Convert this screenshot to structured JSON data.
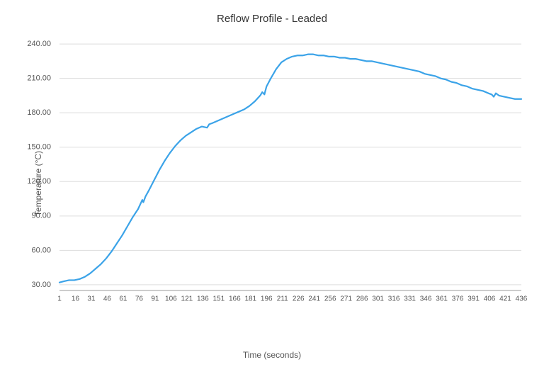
{
  "chart": {
    "type": "line",
    "title": "Reflow Profile - Leaded",
    "title_fontsize": 15,
    "xlabel": "Time (seconds)",
    "ylabel": "Temperature (°C)",
    "label_fontsize": 12,
    "tick_fontsize": 11,
    "background_color": "#ffffff",
    "grid_color": "#dddddd",
    "axis_color": "#999999",
    "text_color": "#555555",
    "line_color": "#3ba3e8",
    "line_width": 2.2,
    "xlim": [
      1,
      436
    ],
    "ylim": [
      25,
      245
    ],
    "xticks": [
      1,
      16,
      31,
      46,
      61,
      76,
      91,
      106,
      121,
      136,
      151,
      166,
      181,
      196,
      211,
      226,
      241,
      256,
      271,
      286,
      301,
      316,
      331,
      346,
      361,
      376,
      391,
      406,
      421,
      436
    ],
    "yticks": [
      30,
      60,
      90,
      120,
      150,
      180,
      210,
      240
    ],
    "ytick_format": "fixed2",
    "series": [
      {
        "x": 1,
        "y": 32
      },
      {
        "x": 5,
        "y": 33
      },
      {
        "x": 10,
        "y": 34
      },
      {
        "x": 15,
        "y": 34
      },
      {
        "x": 20,
        "y": 35
      },
      {
        "x": 25,
        "y": 37
      },
      {
        "x": 30,
        "y": 40
      },
      {
        "x": 35,
        "y": 44
      },
      {
        "x": 40,
        "y": 48
      },
      {
        "x": 45,
        "y": 53
      },
      {
        "x": 50,
        "y": 59
      },
      {
        "x": 55,
        "y": 66
      },
      {
        "x": 60,
        "y": 73
      },
      {
        "x": 65,
        "y": 81
      },
      {
        "x": 70,
        "y": 89
      },
      {
        "x": 75,
        "y": 96
      },
      {
        "x": 77,
        "y": 100
      },
      {
        "x": 79,
        "y": 104
      },
      {
        "x": 80,
        "y": 102
      },
      {
        "x": 82,
        "y": 107
      },
      {
        "x": 85,
        "y": 112
      },
      {
        "x": 90,
        "y": 121
      },
      {
        "x": 95,
        "y": 130
      },
      {
        "x": 100,
        "y": 138
      },
      {
        "x": 105,
        "y": 145
      },
      {
        "x": 110,
        "y": 151
      },
      {
        "x": 115,
        "y": 156
      },
      {
        "x": 120,
        "y": 160
      },
      {
        "x": 125,
        "y": 163
      },
      {
        "x": 130,
        "y": 166
      },
      {
        "x": 135,
        "y": 168
      },
      {
        "x": 140,
        "y": 167
      },
      {
        "x": 142,
        "y": 170
      },
      {
        "x": 145,
        "y": 171
      },
      {
        "x": 150,
        "y": 173
      },
      {
        "x": 155,
        "y": 175
      },
      {
        "x": 160,
        "y": 177
      },
      {
        "x": 165,
        "y": 179
      },
      {
        "x": 170,
        "y": 181
      },
      {
        "x": 175,
        "y": 183
      },
      {
        "x": 180,
        "y": 186
      },
      {
        "x": 185,
        "y": 190
      },
      {
        "x": 190,
        "y": 195
      },
      {
        "x": 192,
        "y": 198
      },
      {
        "x": 194,
        "y": 196
      },
      {
        "x": 196,
        "y": 203
      },
      {
        "x": 200,
        "y": 210
      },
      {
        "x": 205,
        "y": 218
      },
      {
        "x": 210,
        "y": 224
      },
      {
        "x": 215,
        "y": 227
      },
      {
        "x": 220,
        "y": 229
      },
      {
        "x": 225,
        "y": 230
      },
      {
        "x": 230,
        "y": 230
      },
      {
        "x": 235,
        "y": 231
      },
      {
        "x": 240,
        "y": 231
      },
      {
        "x": 245,
        "y": 230
      },
      {
        "x": 250,
        "y": 230
      },
      {
        "x": 255,
        "y": 229
      },
      {
        "x": 260,
        "y": 229
      },
      {
        "x": 265,
        "y": 228
      },
      {
        "x": 270,
        "y": 228
      },
      {
        "x": 275,
        "y": 227
      },
      {
        "x": 280,
        "y": 227
      },
      {
        "x": 285,
        "y": 226
      },
      {
        "x": 290,
        "y": 225
      },
      {
        "x": 295,
        "y": 225
      },
      {
        "x": 300,
        "y": 224
      },
      {
        "x": 305,
        "y": 223
      },
      {
        "x": 310,
        "y": 222
      },
      {
        "x": 315,
        "y": 221
      },
      {
        "x": 320,
        "y": 220
      },
      {
        "x": 325,
        "y": 219
      },
      {
        "x": 330,
        "y": 218
      },
      {
        "x": 335,
        "y": 217
      },
      {
        "x": 340,
        "y": 216
      },
      {
        "x": 345,
        "y": 214
      },
      {
        "x": 350,
        "y": 213
      },
      {
        "x": 355,
        "y": 212
      },
      {
        "x": 360,
        "y": 210
      },
      {
        "x": 365,
        "y": 209
      },
      {
        "x": 370,
        "y": 207
      },
      {
        "x": 375,
        "y": 206
      },
      {
        "x": 380,
        "y": 204
      },
      {
        "x": 385,
        "y": 203
      },
      {
        "x": 390,
        "y": 201
      },
      {
        "x": 395,
        "y": 200
      },
      {
        "x": 400,
        "y": 199
      },
      {
        "x": 405,
        "y": 197
      },
      {
        "x": 408,
        "y": 196
      },
      {
        "x": 410,
        "y": 194
      },
      {
        "x": 412,
        "y": 197
      },
      {
        "x": 415,
        "y": 195
      },
      {
        "x": 420,
        "y": 194
      },
      {
        "x": 425,
        "y": 193
      },
      {
        "x": 430,
        "y": 192
      },
      {
        "x": 436,
        "y": 192
      }
    ]
  }
}
